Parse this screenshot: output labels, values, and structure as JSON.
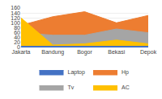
{
  "chart_data": {
    "type": "area",
    "categories": [
      "Jakarta",
      "Bandung",
      "Bogor",
      "Bekasi",
      "Depok"
    ],
    "series": [
      {
        "name": "Laptop",
        "color": "#4472C4",
        "values": [
          5,
          5,
          5,
          5,
          5
        ]
      },
      {
        "name": "Hp",
        "color": "#ED7D31",
        "values": [
          90,
          125,
          145,
          100,
          130
        ]
      },
      {
        "name": "Tv",
        "color": "#A5A5A5",
        "values": [
          60,
          50,
          50,
          75,
          60
        ]
      },
      {
        "name": "AC",
        "color": "#FFC000",
        "values": [
          120,
          10,
          15,
          30,
          15
        ]
      }
    ],
    "ylim": [
      0,
      160
    ],
    "yticks": [
      0,
      20,
      40,
      60,
      80,
      100,
      120,
      140,
      160
    ],
    "grid": true,
    "legend": "bottom"
  }
}
